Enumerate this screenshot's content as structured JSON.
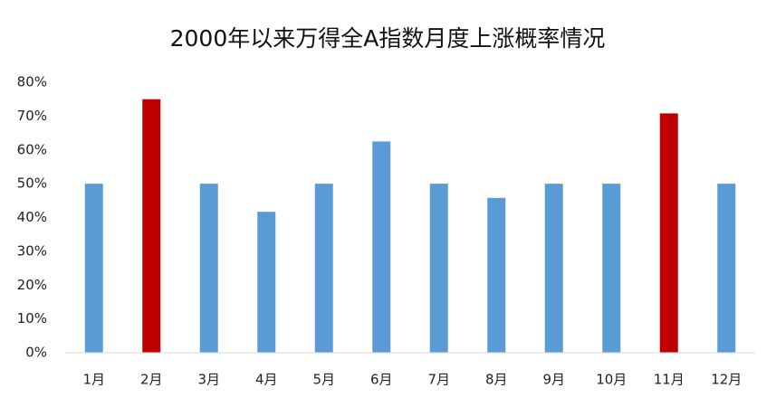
{
  "chart_data": {
    "type": "bar",
    "title": "2000年以来万得全A指数月度上涨概率情况",
    "categories": [
      "1月",
      "2月",
      "3月",
      "4月",
      "5月",
      "6月",
      "7月",
      "8月",
      "9月",
      "10月",
      "11月",
      "12月"
    ],
    "values": [
      50,
      75,
      50,
      41.7,
      50,
      62.5,
      50,
      45.8,
      50,
      50,
      70.8,
      50
    ],
    "colors": [
      "#5b9bd5",
      "#c00000",
      "#5b9bd5",
      "#5b9bd5",
      "#5b9bd5",
      "#5b9bd5",
      "#5b9bd5",
      "#5b9bd5",
      "#5b9bd5",
      "#5b9bd5",
      "#c00000",
      "#5b9bd5"
    ],
    "ylim": [
      0,
      80
    ],
    "yticks": [
      {
        "value": 0,
        "label": "0%"
      },
      {
        "value": 10,
        "label": "10%"
      },
      {
        "value": 20,
        "label": "20%"
      },
      {
        "value": 30,
        "label": "30%"
      },
      {
        "value": 40,
        "label": "40%"
      },
      {
        "value": 50,
        "label": "50%"
      },
      {
        "value": 60,
        "label": "60%"
      },
      {
        "value": 70,
        "label": "70%"
      },
      {
        "value": 80,
        "label": "80%"
      }
    ],
    "grid": false
  }
}
